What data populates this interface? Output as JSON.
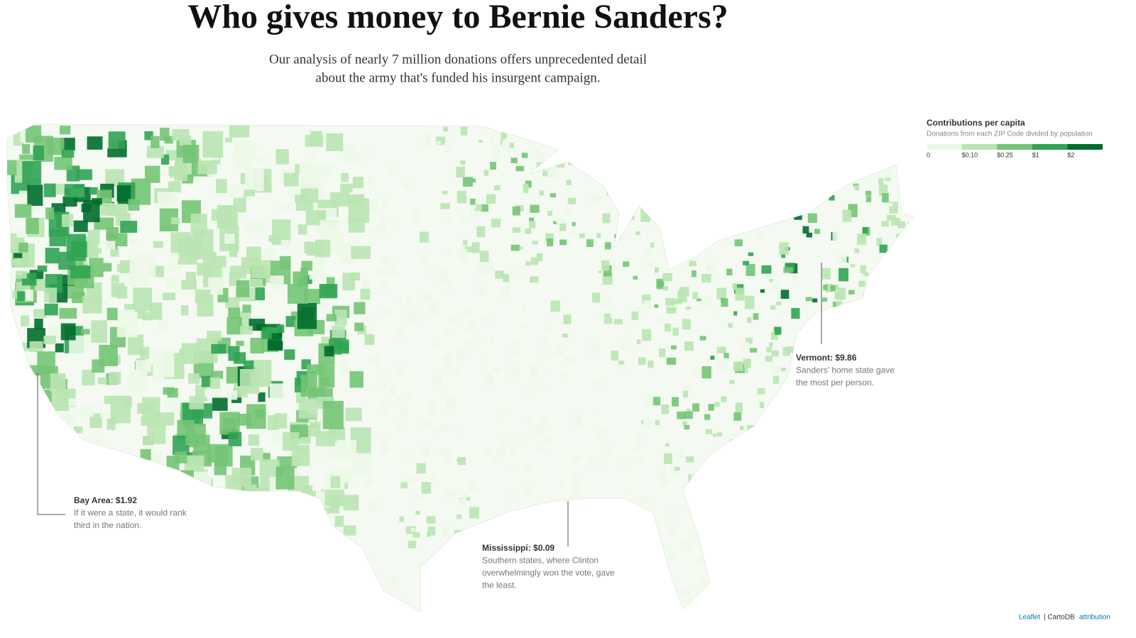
{
  "header": {
    "title": "Who gives money to Bernie Sanders?",
    "subtitle_lines": [
      "Our analysis of nearly 7 million donations offers unprecedented detail",
      "about the army that's funded his insurgent campaign."
    ]
  },
  "legend": {
    "title": "Contributions per capita",
    "subtitle": "Donations from each ZIP Code divided by population",
    "labels": [
      "0",
      "$0.10",
      "$0.25",
      "$1",
      "$2"
    ],
    "colors": [
      "#edf8e9",
      "#bae4b3",
      "#74c476",
      "#31a354",
      "#006d2c"
    ]
  },
  "annotations": [
    {
      "label": "Bay Area: $1.92",
      "text_lines": [
        "If it were a state, it would rank",
        "third in the nation."
      ]
    },
    {
      "label": "Mississippi: $0.09",
      "text_lines": [
        "Southern states, where Clinton",
        "overwhelmingly won the vote, gave",
        "the least."
      ]
    },
    {
      "label": "Vermont: $9.86",
      "text_lines": [
        "Sanders' home state gave",
        "the most per person."
      ]
    }
  ],
  "attribution": [
    "Leaflet",
    "| CartoDB",
    "attribution"
  ]
}
